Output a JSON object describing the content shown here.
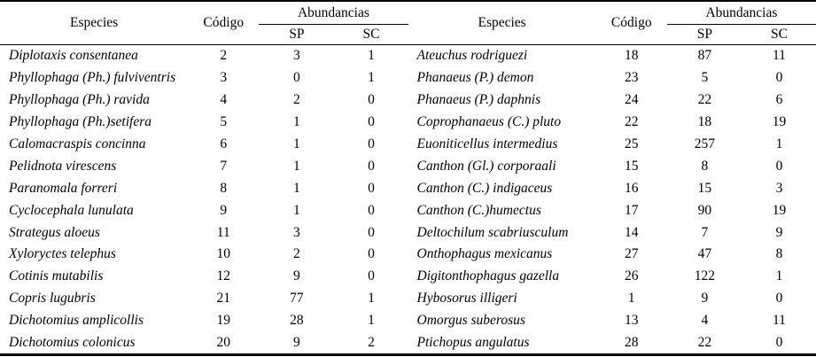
{
  "table": {
    "headers": {
      "especies": "Especies",
      "codigo": "Código",
      "abundancias": "Abundancias",
      "sp": "SP",
      "sc": "SC"
    },
    "left_rows": [
      {
        "especies": "Diplotaxis consentanea",
        "codigo": 2,
        "sp": 3,
        "sc": 1
      },
      {
        "especies": "Phyllophaga (Ph.) fulviventris",
        "codigo": 3,
        "sp": 0,
        "sc": 1
      },
      {
        "especies": "Phyllophaga (Ph.) ravida",
        "codigo": 4,
        "sp": 2,
        "sc": 0
      },
      {
        "especies": "Phyllophaga (Ph.)setifera",
        "codigo": 5,
        "sp": 1,
        "sc": 0
      },
      {
        "especies": "Calomacraspis concinna",
        "codigo": 6,
        "sp": 1,
        "sc": 0
      },
      {
        "especies": "Pelidnota virescens",
        "codigo": 7,
        "sp": 1,
        "sc": 0
      },
      {
        "especies": "Paranomala forreri",
        "codigo": 8,
        "sp": 1,
        "sc": 0
      },
      {
        "especies": "Cyclocephala lunulata",
        "codigo": 9,
        "sp": 1,
        "sc": 0
      },
      {
        "especies": "Strategus aloeus",
        "codigo": 11,
        "sp": 3,
        "sc": 0
      },
      {
        "especies": "Xyloryctes telephus",
        "codigo": 10,
        "sp": 2,
        "sc": 0
      },
      {
        "especies": "Cotinis mutabilis",
        "codigo": 12,
        "sp": 9,
        "sc": 0
      },
      {
        "especies": "Copris lugubris",
        "codigo": 21,
        "sp": 77,
        "sc": 1
      },
      {
        "especies": "Dichotomius amplicollis",
        "codigo": 19,
        "sp": 28,
        "sc": 1
      },
      {
        "especies": "Dichotomius colonicus",
        "codigo": 20,
        "sp": 9,
        "sc": 2
      }
    ],
    "right_rows": [
      {
        "especies": "Ateuchus rodriguezi",
        "codigo": 18,
        "sp": 87,
        "sc": 11
      },
      {
        "especies": "Phanaeus (P.) demon",
        "codigo": 23,
        "sp": 5,
        "sc": 0
      },
      {
        "especies": "Phanaeus (P.) daphnis",
        "codigo": 24,
        "sp": 22,
        "sc": 6
      },
      {
        "especies": "Coprophanaeus (C.) pluto",
        "codigo": 22,
        "sp": 18,
        "sc": 19
      },
      {
        "especies": "Euoniticellus intermedius",
        "codigo": 25,
        "sp": 257,
        "sc": 1
      },
      {
        "especies": "Canthon (Gl.) corporaali",
        "codigo": 15,
        "sp": 8,
        "sc": 0
      },
      {
        "especies": "Canthon (C.) indigaceus",
        "codigo": 16,
        "sp": 15,
        "sc": 3
      },
      {
        "especies": "Canthon (C.)humectus",
        "codigo": 17,
        "sp": 90,
        "sc": 19
      },
      {
        "especies": "Deltochilum scabriusculum",
        "codigo": 14,
        "sp": 7,
        "sc": 9
      },
      {
        "especies": "Onthophagus mexicanus",
        "codigo": 27,
        "sp": 47,
        "sc": 8
      },
      {
        "especies": "Digitonthophagus gazella",
        "codigo": 26,
        "sp": 122,
        "sc": 1
      },
      {
        "especies": "Hybosorus illigeri",
        "codigo": 1,
        "sp": 9,
        "sc": 0
      },
      {
        "especies": "Omorgus suberosus",
        "codigo": 13,
        "sp": 4,
        "sc": 11
      },
      {
        "especies": "Ptichopus angulatus",
        "codigo": 28,
        "sp": 22,
        "sc": 0
      }
    ]
  }
}
